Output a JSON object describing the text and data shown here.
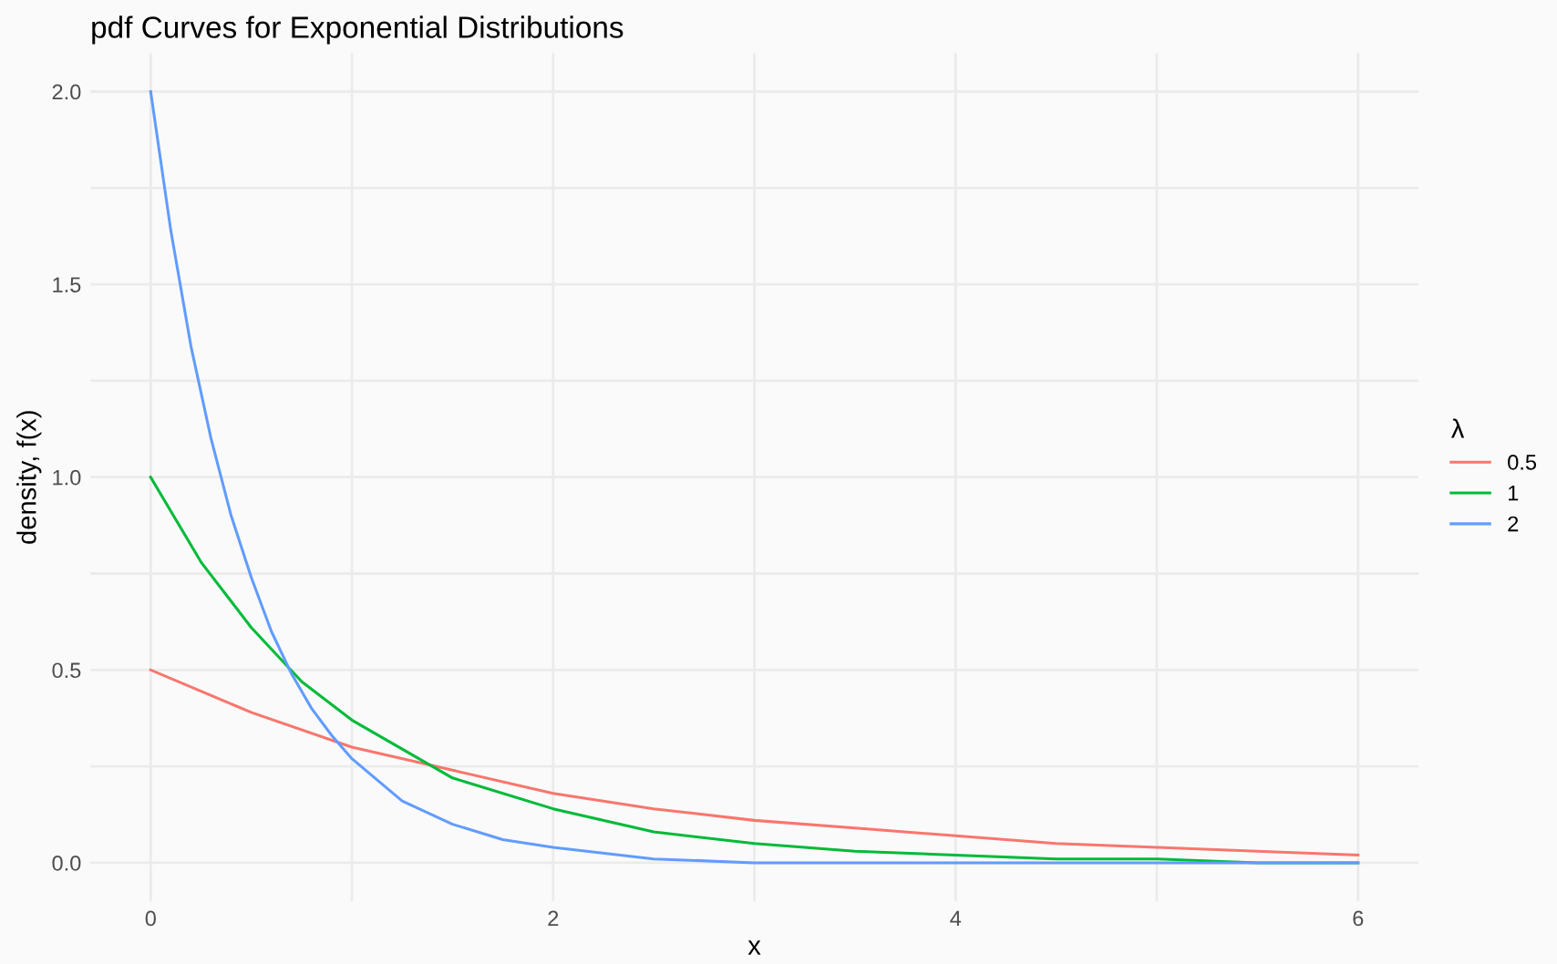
{
  "chart_data": {
    "type": "line",
    "title": "pdf Curves for Exponential Distributions",
    "xlabel": "x",
    "ylabel": "density, f(x)",
    "legend_title": "λ",
    "legend": "right",
    "grid": true,
    "line_style": "solid",
    "marker": "none",
    "xlim": [
      -0.3,
      6.3
    ],
    "ylim": [
      -0.1,
      2.1
    ],
    "xticks": [
      0,
      {
        "value": 1,
        "label": null
      },
      2,
      {
        "value": 3,
        "label": null
      },
      4,
      {
        "value": 5,
        "label": null
      },
      6
    ],
    "yticks": [
      "0.0",
      {
        "value": 0.25,
        "label": null
      },
      {
        "value": 0.5,
        "label": "0.5"
      },
      {
        "value": 0.75,
        "label": null
      },
      {
        "value": 1,
        "label": "1.0"
      },
      {
        "value": 1.25,
        "label": null
      },
      {
        "value": 1.5,
        "label": "1.5"
      },
      {
        "value": 1.75,
        "label": null
      },
      {
        "value": 2,
        "label": "2.0"
      }
    ],
    "series": [
      {
        "name": "0.5",
        "color": "#f8766d",
        "x": [
          0,
          0.5,
          1,
          1.5,
          2,
          2.5,
          3,
          3.5,
          4,
          4.5,
          5,
          5.5,
          6
        ],
        "values": [
          0.5,
          0.39,
          0.3,
          0.24,
          0.18,
          0.14,
          0.11,
          0.09,
          0.07,
          0.05,
          0.04,
          0.03,
          0.02
        ]
      },
      {
        "name": "1",
        "color": "#00ba38",
        "x": [
          0,
          0.25,
          0.5,
          0.75,
          1,
          1.5,
          2,
          2.5,
          3,
          3.5,
          4,
          4.5,
          5,
          5.5,
          6
        ],
        "values": [
          1,
          0.78,
          0.61,
          0.47,
          0.37,
          0.22,
          0.14,
          0.08,
          0.05,
          0.03,
          0.02,
          0.01,
          0.01,
          0,
          0
        ]
      },
      {
        "name": "2",
        "color": "#619cff",
        "x": [
          0,
          0.1,
          0.2,
          0.3,
          0.4,
          0.5,
          0.6,
          0.7,
          0.8,
          0.9,
          1,
          1.25,
          1.5,
          1.75,
          2,
          2.5,
          3,
          3.5,
          4,
          5,
          6
        ],
        "values": [
          2,
          1.64,
          1.34,
          1.1,
          0.9,
          0.74,
          0.6,
          0.49,
          0.4,
          0.33,
          0.27,
          0.16,
          0.1,
          0.06,
          0.04,
          0.01,
          0,
          0,
          0,
          0,
          0
        ]
      }
    ]
  }
}
